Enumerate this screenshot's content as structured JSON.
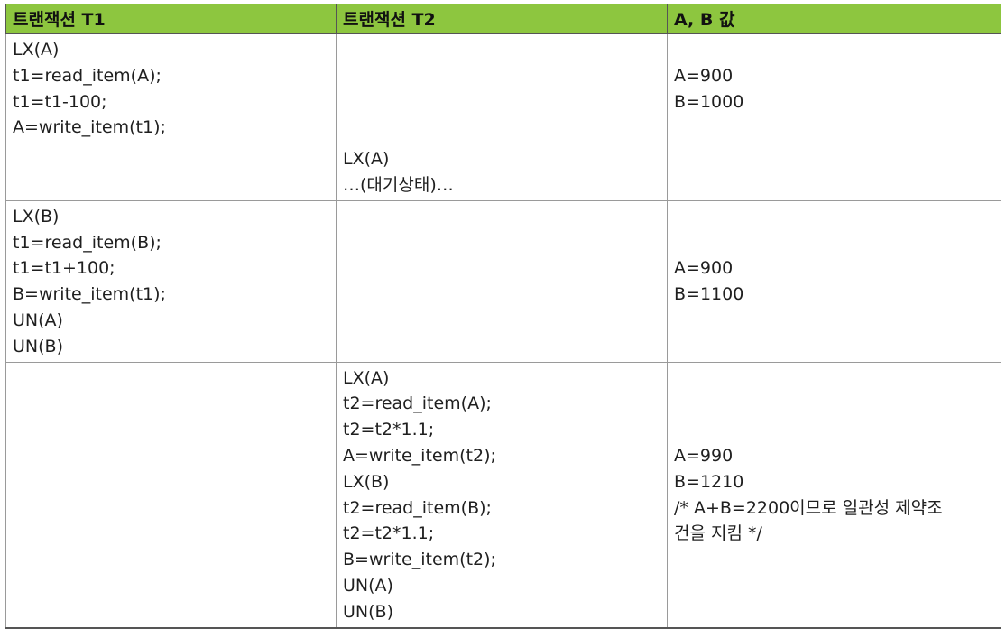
{
  "table": {
    "headers": [
      "트랜잭션 T1",
      "트랜잭션 T2",
      "A, B 값"
    ],
    "rows": [
      {
        "t1": [
          "LX(A)",
          "t1=read_item(A);",
          "t1=t1-100;",
          "A=write_item(t1);"
        ],
        "t2": [],
        "values": [
          "A=900",
          "B=1000"
        ]
      },
      {
        "t1": [],
        "t2": [
          "LX(A)",
          "…(대기상태)…"
        ],
        "values": []
      },
      {
        "t1": [
          "LX(B)",
          "t1=read_item(B);",
          "t1=t1+100;",
          "B=write_item(t1);",
          "UN(A)",
          "UN(B)"
        ],
        "t2": [],
        "values": [
          "A=900",
          "B=1100"
        ]
      },
      {
        "t1": [],
        "t2": [
          "LX(A)",
          "t2=read_item(A);",
          "t2=t2*1.1;",
          "A=write_item(t2);",
          "LX(B)",
          "t2=read_item(B);",
          "t2=t2*1.1;",
          "B=write_item(t2);",
          "UN(A)",
          "UN(B)"
        ],
        "values": [
          "A=990",
          "B=1210",
          "/* A+B=2200이므로 일관성 제약조",
          "건을 지킴 */"
        ]
      }
    ]
  }
}
